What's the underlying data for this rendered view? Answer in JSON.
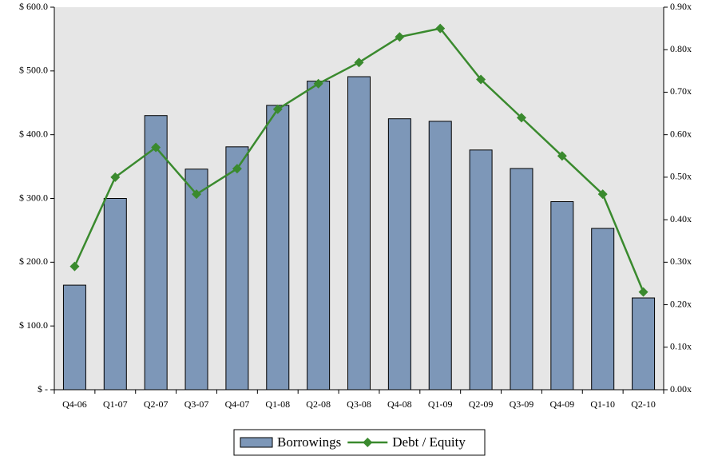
{
  "chart_data": {
    "type": "bar",
    "categories": [
      "Q4-06",
      "Q1-07",
      "Q2-07",
      "Q3-07",
      "Q4-07",
      "Q1-08",
      "Q2-08",
      "Q3-08",
      "Q4-08",
      "Q1-09",
      "Q2-09",
      "Q3-09",
      "Q4-09",
      "Q1-10",
      "Q2-10"
    ],
    "series": [
      {
        "name": "Borrowings",
        "type": "bar",
        "color": "#7d97b8",
        "values": [
          164,
          300,
          430,
          346,
          381,
          446,
          484,
          491,
          425,
          421,
          376,
          347,
          295,
          253,
          144
        ]
      },
      {
        "name": "Debt / Equity",
        "type": "line",
        "axis": "y2",
        "color": "#3a8a2e",
        "values": [
          0.29,
          0.5,
          0.57,
          0.46,
          0.52,
          0.66,
          0.72,
          0.77,
          0.83,
          0.85,
          0.73,
          0.64,
          0.55,
          0.46,
          0.23
        ]
      }
    ],
    "ylim": [
      0,
      600
    ],
    "yticks": [
      {
        "value": 0,
        "label": "$ -"
      },
      {
        "value": 100,
        "label": "$ 100.0"
      },
      {
        "value": 200,
        "label": "$ 200.0"
      },
      {
        "value": 300,
        "label": "$ 300.0"
      },
      {
        "value": 400,
        "label": "$ 400.0"
      },
      {
        "value": 500,
        "label": "$ 500.0"
      },
      {
        "value": 600,
        "label": "$ 600.0"
      }
    ],
    "y2lim": [
      0,
      0.9
    ],
    "y2ticks": [
      {
        "value": 0,
        "label": "0.00x"
      },
      {
        "value": 0.1,
        "label": "0.10x"
      },
      {
        "value": 0.2,
        "label": "0.20x"
      },
      {
        "value": 0.3,
        "label": "0.30x"
      },
      {
        "value": 0.4,
        "label": "0.40x"
      },
      {
        "value": 0.5,
        "label": "0.50x"
      },
      {
        "value": 0.6,
        "label": "0.60x"
      },
      {
        "value": 0.7,
        "label": "0.70x"
      },
      {
        "value": 0.8,
        "label": "0.80x"
      },
      {
        "value": 0.9,
        "label": "0.90x"
      }
    ],
    "grid": false,
    "plot_background": "#e6e6e6",
    "legend": "bottom"
  }
}
